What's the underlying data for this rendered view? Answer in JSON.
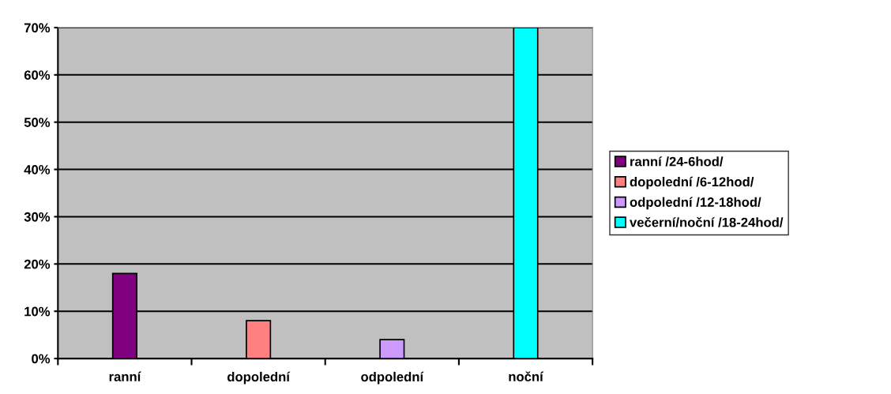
{
  "chart_data": {
    "type": "bar",
    "categories": [
      "ranní",
      "dopolední",
      "odpolední",
      "noční"
    ],
    "series": [
      {
        "name": "ranní /24-6hod/",
        "color": "#800080",
        "values": [
          18,
          null,
          null,
          null
        ]
      },
      {
        "name": "dopolední /6-12hod/",
        "color": "#ff8080",
        "values": [
          null,
          8,
          null,
          null
        ]
      },
      {
        "name": "odpolední /12-18hod/",
        "color": "#cc99ff",
        "values": [
          null,
          null,
          4,
          null
        ]
      },
      {
        "name": "večerní/noční /18-24hod/",
        "color": "#00ffff",
        "values": [
          null,
          null,
          null,
          70
        ]
      }
    ],
    "ylim": [
      0,
      70
    ],
    "yticks": [
      {
        "value": 0,
        "label": "0%"
      },
      {
        "value": 10,
        "label": "10%"
      },
      {
        "value": 20,
        "label": "20%"
      },
      {
        "value": 30,
        "label": "30%"
      },
      {
        "value": 40,
        "label": "40%"
      },
      {
        "value": 50,
        "label": "50%"
      },
      {
        "value": 60,
        "label": "60%"
      },
      {
        "value": 70,
        "label": "70%"
      }
    ],
    "grid": "y",
    "legend": "right"
  }
}
